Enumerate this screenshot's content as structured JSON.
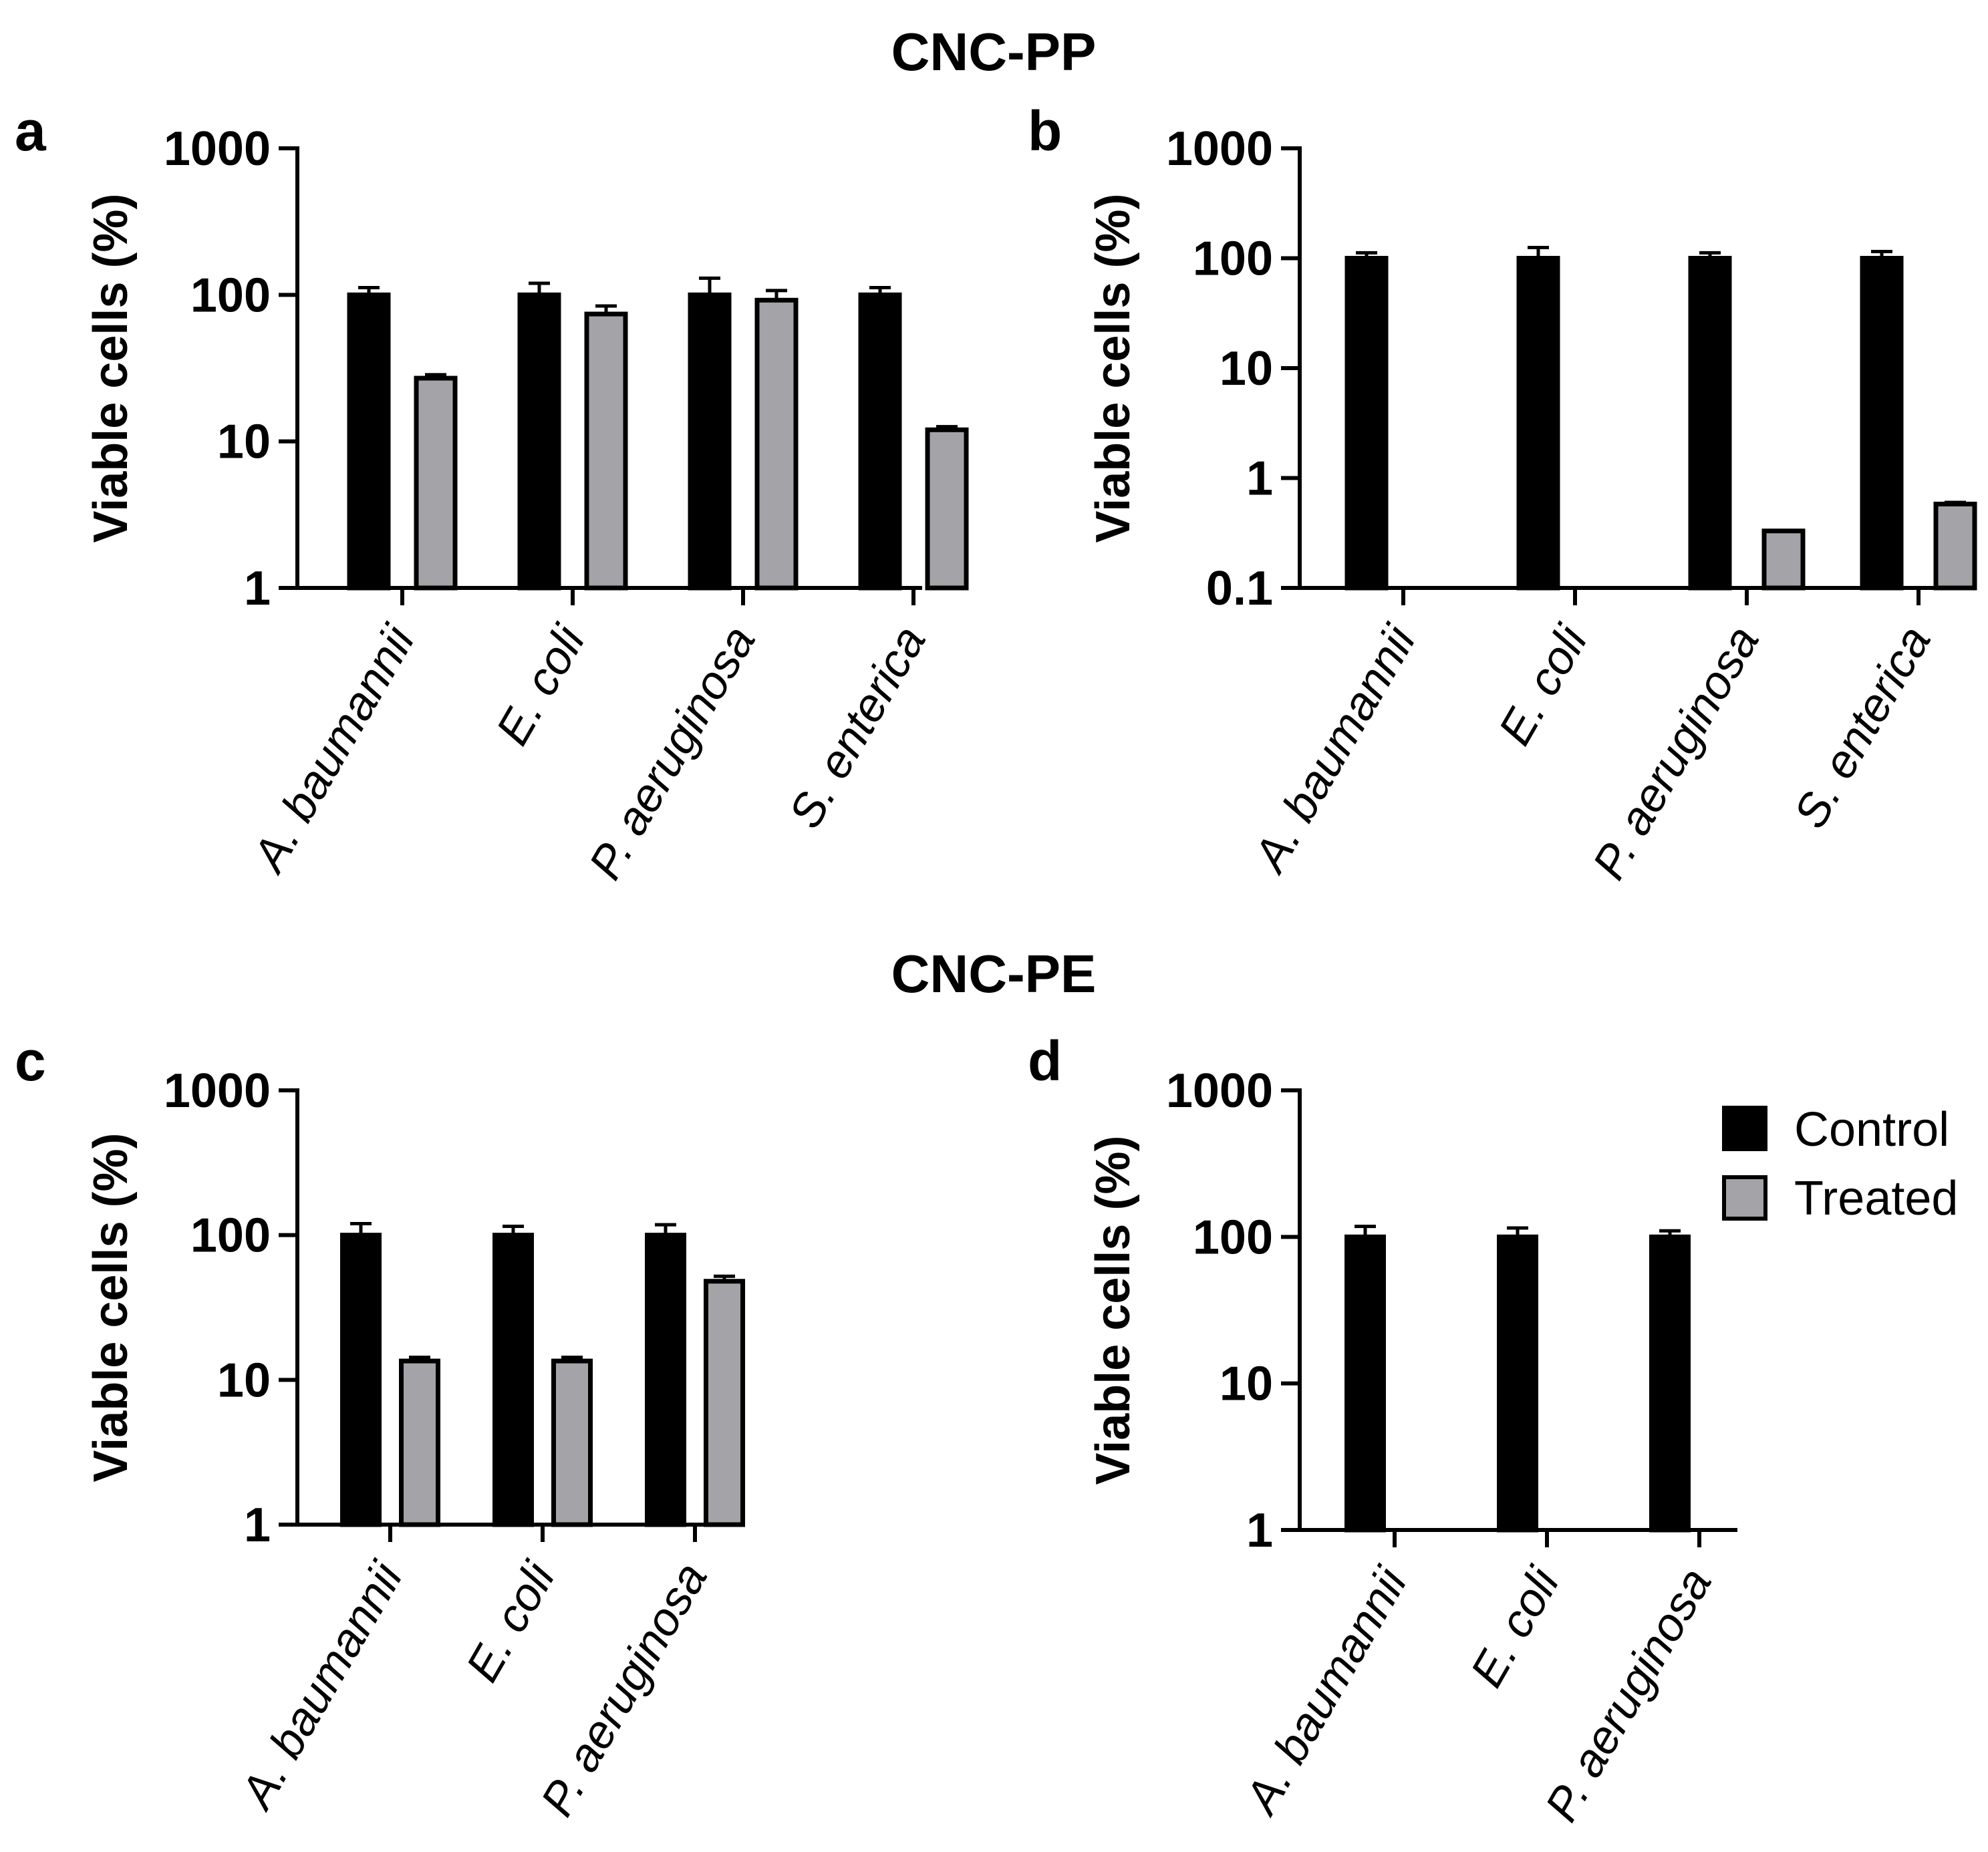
{
  "figure": {
    "group_titles": [
      "CNC-PP",
      "CNC-PE"
    ]
  },
  "legend": {
    "entries": [
      {
        "label": "Control",
        "color": "#000000"
      },
      {
        "label": "Treated",
        "color": "#a3a3a8"
      }
    ]
  },
  "chart_data": [
    {
      "panel": "a",
      "group": "CNC-PP",
      "type": "bar",
      "yscale": "log",
      "ylabel": "Viable cells (%)",
      "ylim": [
        1,
        1000
      ],
      "yticks": [
        1,
        10,
        100,
        1000
      ],
      "ytick_labels": [
        "1",
        "10",
        "100",
        "1000"
      ],
      "categories": [
        "A. baumannii",
        "E. coli",
        "P. aeruginosa",
        "S. enterica"
      ],
      "series": [
        {
          "name": "Control",
          "values": [
            100,
            100,
            100,
            100
          ],
          "errors": [
            12,
            20,
            30,
            12
          ]
        },
        {
          "name": "Treated",
          "values": [
            27,
            74,
            92,
            12
          ],
          "errors": [
            1.5,
            10,
            15,
            0.6
          ]
        }
      ]
    },
    {
      "panel": "b",
      "group": "CNC-PP",
      "type": "bar",
      "yscale": "log",
      "ylabel": "Viable cells (%)",
      "ylim": [
        0.1,
        1000
      ],
      "yticks": [
        0.1,
        1,
        10,
        100,
        1000
      ],
      "ytick_labels": [
        "0.1",
        "1",
        "10",
        "100",
        "1000"
      ],
      "categories": [
        "A. baumannii",
        "E. coli",
        "P. aeruginosa",
        "S. enterica"
      ],
      "series": [
        {
          "name": "Control",
          "values": [
            100,
            100,
            100,
            100
          ],
          "errors": [
            12,
            25,
            12,
            15
          ]
        },
        {
          "name": "Treated",
          "values": [
            null,
            null,
            0.33,
            0.58
          ],
          "errors": [
            0,
            0,
            0,
            0.02
          ]
        }
      ]
    },
    {
      "panel": "c",
      "group": "CNC-PE",
      "type": "bar",
      "yscale": "log",
      "ylabel": "Viable cells (%)",
      "ylim": [
        1,
        1000
      ],
      "yticks": [
        1,
        10,
        100,
        1000
      ],
      "ytick_labels": [
        "1",
        "10",
        "100",
        "1000"
      ],
      "categories": [
        "A. baumannii",
        "E. coli",
        "P. aeruginosa"
      ],
      "series": [
        {
          "name": "Control",
          "values": [
            100,
            100,
            100
          ],
          "errors": [
            20,
            15,
            18
          ]
        },
        {
          "name": "Treated",
          "values": [
            13.5,
            13.5,
            48
          ],
          "errors": [
            0.8,
            0.8,
            4
          ]
        }
      ]
    },
    {
      "panel": "d",
      "group": "CNC-PE",
      "type": "bar",
      "yscale": "log",
      "ylabel": "Viable cells (%)",
      "ylim": [
        1,
        1000
      ],
      "yticks": [
        1,
        10,
        100,
        1000
      ],
      "ytick_labels": [
        "1",
        "10",
        "100",
        "1000"
      ],
      "categories": [
        "A. baumannii",
        "E. coli",
        "P. aeruginosa"
      ],
      "series": [
        {
          "name": "Control",
          "values": [
            100,
            100,
            100
          ],
          "errors": [
            18,
            15,
            10
          ]
        },
        {
          "name": "Treated",
          "values": [
            null,
            null,
            null
          ],
          "errors": [
            0,
            0,
            0
          ]
        }
      ]
    }
  ]
}
